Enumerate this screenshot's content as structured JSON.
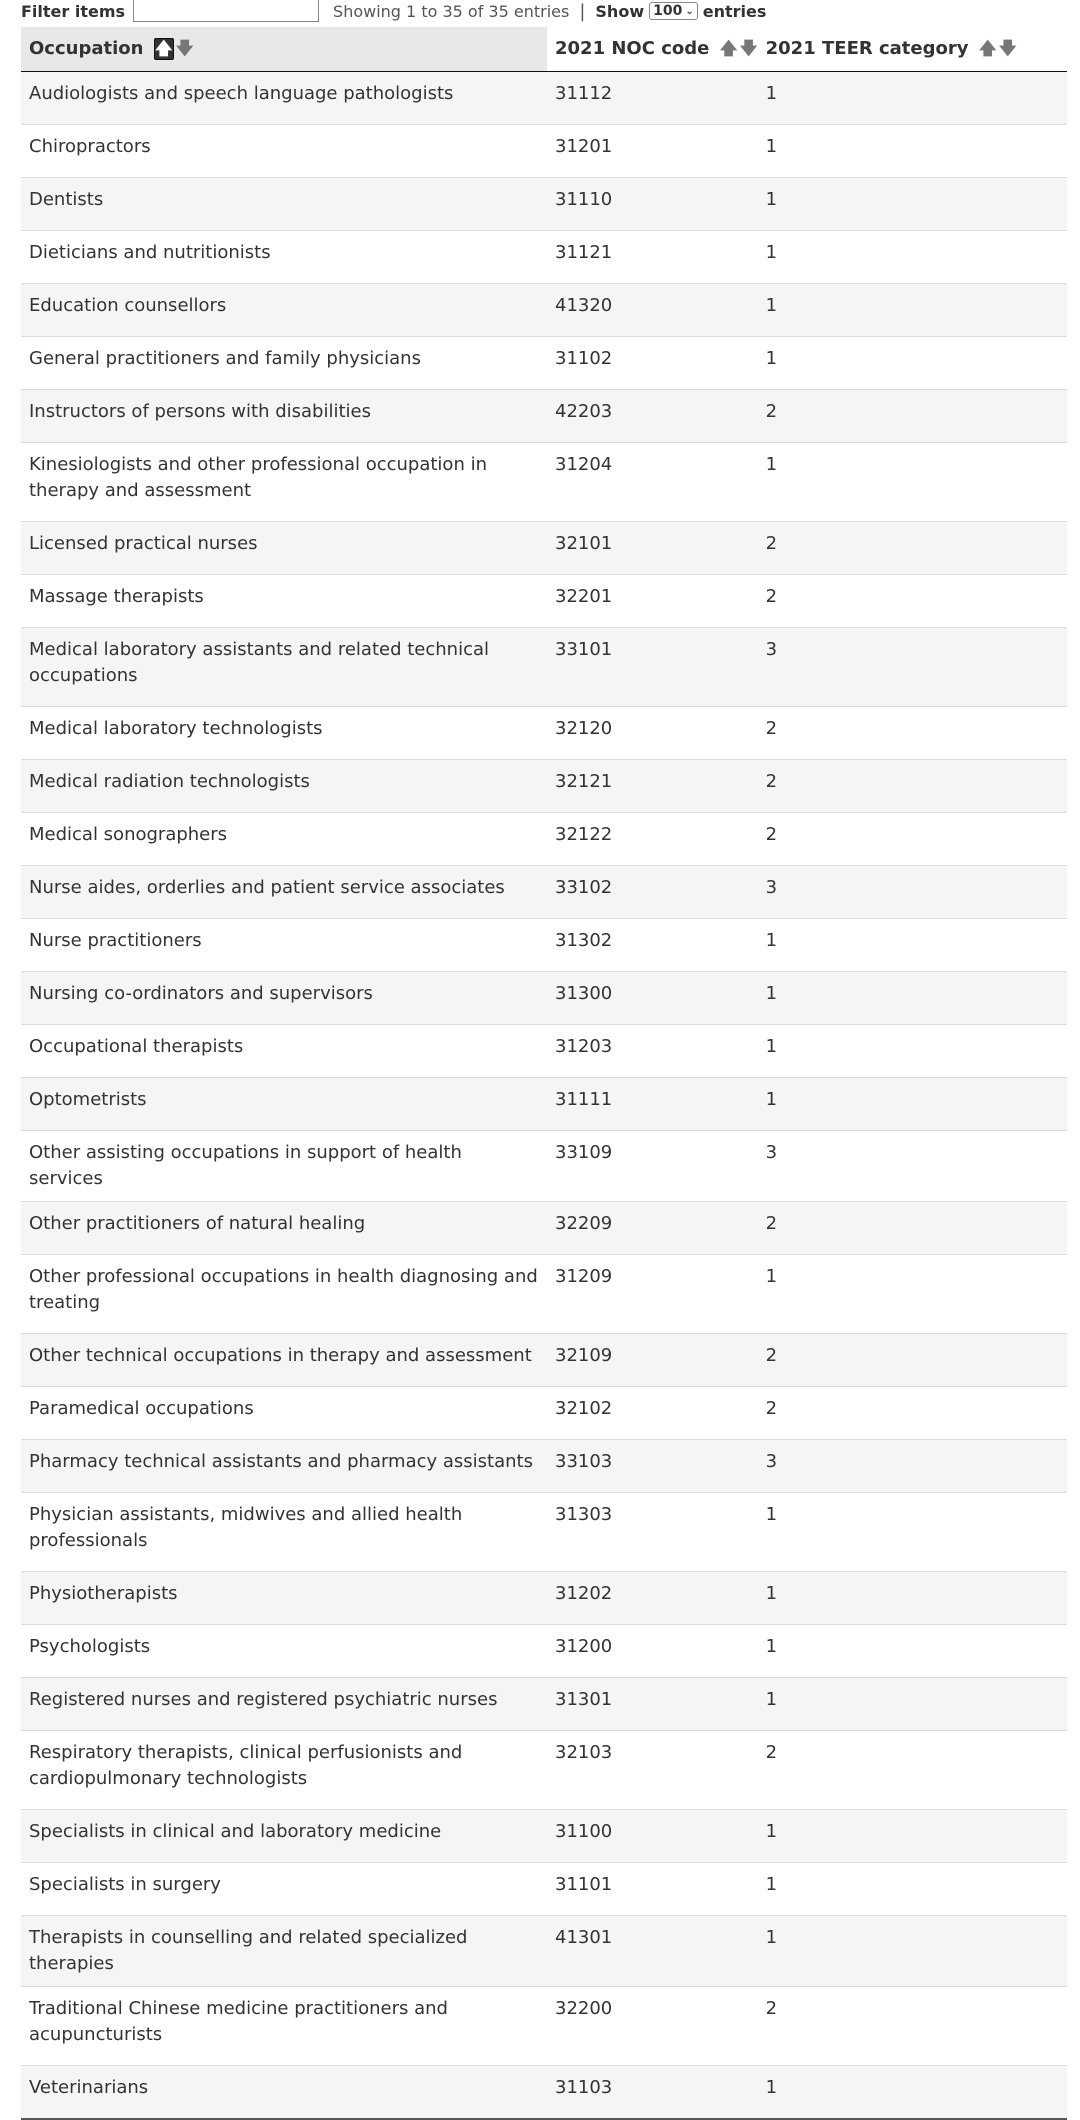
{
  "controls": {
    "filter_label": "Filter items",
    "filter_value": "",
    "info": "Showing 1 to 35 of 35 entries",
    "show_label": "Show",
    "show_value": "100",
    "entries_label": "entries"
  },
  "icons": {
    "sort_up": "arrow-up-icon",
    "sort_down": "arrow-down-icon",
    "select": "chevron-down-icon"
  },
  "table": {
    "columns": [
      "Occupation",
      "2021 NOC code",
      "2021 TEER category"
    ],
    "rows": [
      {
        "occupation": "Audiologists and speech language pathologists",
        "noc": "31112",
        "teer": "1"
      },
      {
        "occupation": "Chiropractors",
        "noc": "31201",
        "teer": "1"
      },
      {
        "occupation": "Dentists",
        "noc": "31110",
        "teer": "1"
      },
      {
        "occupation": "Dieticians and nutritionists",
        "noc": "31121",
        "teer": "1"
      },
      {
        "occupation": "Education counsellors",
        "noc": "41320",
        "teer": "1"
      },
      {
        "occupation": "General practitioners and family physicians",
        "noc": "31102",
        "teer": "1"
      },
      {
        "occupation": "Instructors of persons with disabilities",
        "noc": "42203",
        "teer": "2"
      },
      {
        "occupation": "Kinesiologists and other professional occupation in therapy and assessment",
        "noc": "31204",
        "teer": "1"
      },
      {
        "occupation": "Licensed practical nurses",
        "noc": "32101",
        "teer": "2"
      },
      {
        "occupation": "Massage therapists",
        "noc": "32201",
        "teer": "2"
      },
      {
        "occupation": "Medical laboratory assistants and related technical occupations",
        "noc": "33101",
        "teer": "3"
      },
      {
        "occupation": "Medical laboratory technologists",
        "noc": "32120",
        "teer": "2"
      },
      {
        "occupation": "Medical radiation technologists",
        "noc": "32121",
        "teer": "2"
      },
      {
        "occupation": "Medical sonographers",
        "noc": "32122",
        "teer": "2"
      },
      {
        "occupation": "Nurse aides, orderlies and patient service associates",
        "noc": "33102",
        "teer": "3"
      },
      {
        "occupation": "Nurse practitioners",
        "noc": "31302",
        "teer": "1"
      },
      {
        "occupation": "Nursing co-ordinators and supervisors",
        "noc": "31300",
        "teer": "1"
      },
      {
        "occupation": "Occupational therapists",
        "noc": "31203",
        "teer": "1"
      },
      {
        "occupation": "Optometrists",
        "noc": "31111",
        "teer": "1"
      },
      {
        "occupation": "Other assisting occupations in support of health services",
        "noc": "33109",
        "teer": "3"
      },
      {
        "occupation": "Other practitioners of natural healing",
        "noc": "32209",
        "teer": "2"
      },
      {
        "occupation": "Other professional occupations in health diagnosing and treating",
        "noc": "31209",
        "teer": "1"
      },
      {
        "occupation": "Other technical occupations in therapy and assessment",
        "noc": "32109",
        "teer": "2"
      },
      {
        "occupation": "Paramedical occupations",
        "noc": "32102",
        "teer": "2"
      },
      {
        "occupation": "Pharmacy technical assistants and pharmacy assistants",
        "noc": "33103",
        "teer": "3"
      },
      {
        "occupation": "Physician assistants, midwives and allied health professionals",
        "noc": "31303",
        "teer": "1"
      },
      {
        "occupation": "Physiotherapists",
        "noc": "31202",
        "teer": "1"
      },
      {
        "occupation": "Psychologists",
        "noc": "31200",
        "teer": "1"
      },
      {
        "occupation": "Registered nurses and registered psychiatric nurses",
        "noc": "31301",
        "teer": "1"
      },
      {
        "occupation": "Respiratory therapists, clinical perfusionists and cardiopulmonary technologists",
        "noc": "32103",
        "teer": "2"
      },
      {
        "occupation": "Specialists in clinical and laboratory medicine",
        "noc": "31100",
        "teer": "1"
      },
      {
        "occupation": "Specialists in surgery",
        "noc": "31101",
        "teer": "1"
      },
      {
        "occupation": "Therapists in counselling and related specialized therapies",
        "noc": "41301",
        "teer": "1"
      },
      {
        "occupation": "Traditional Chinese medicine practitioners and acupuncturists",
        "noc": "32200",
        "teer": "2"
      },
      {
        "occupation": "Veterinarians",
        "noc": "31103",
        "teer": "1"
      }
    ]
  }
}
